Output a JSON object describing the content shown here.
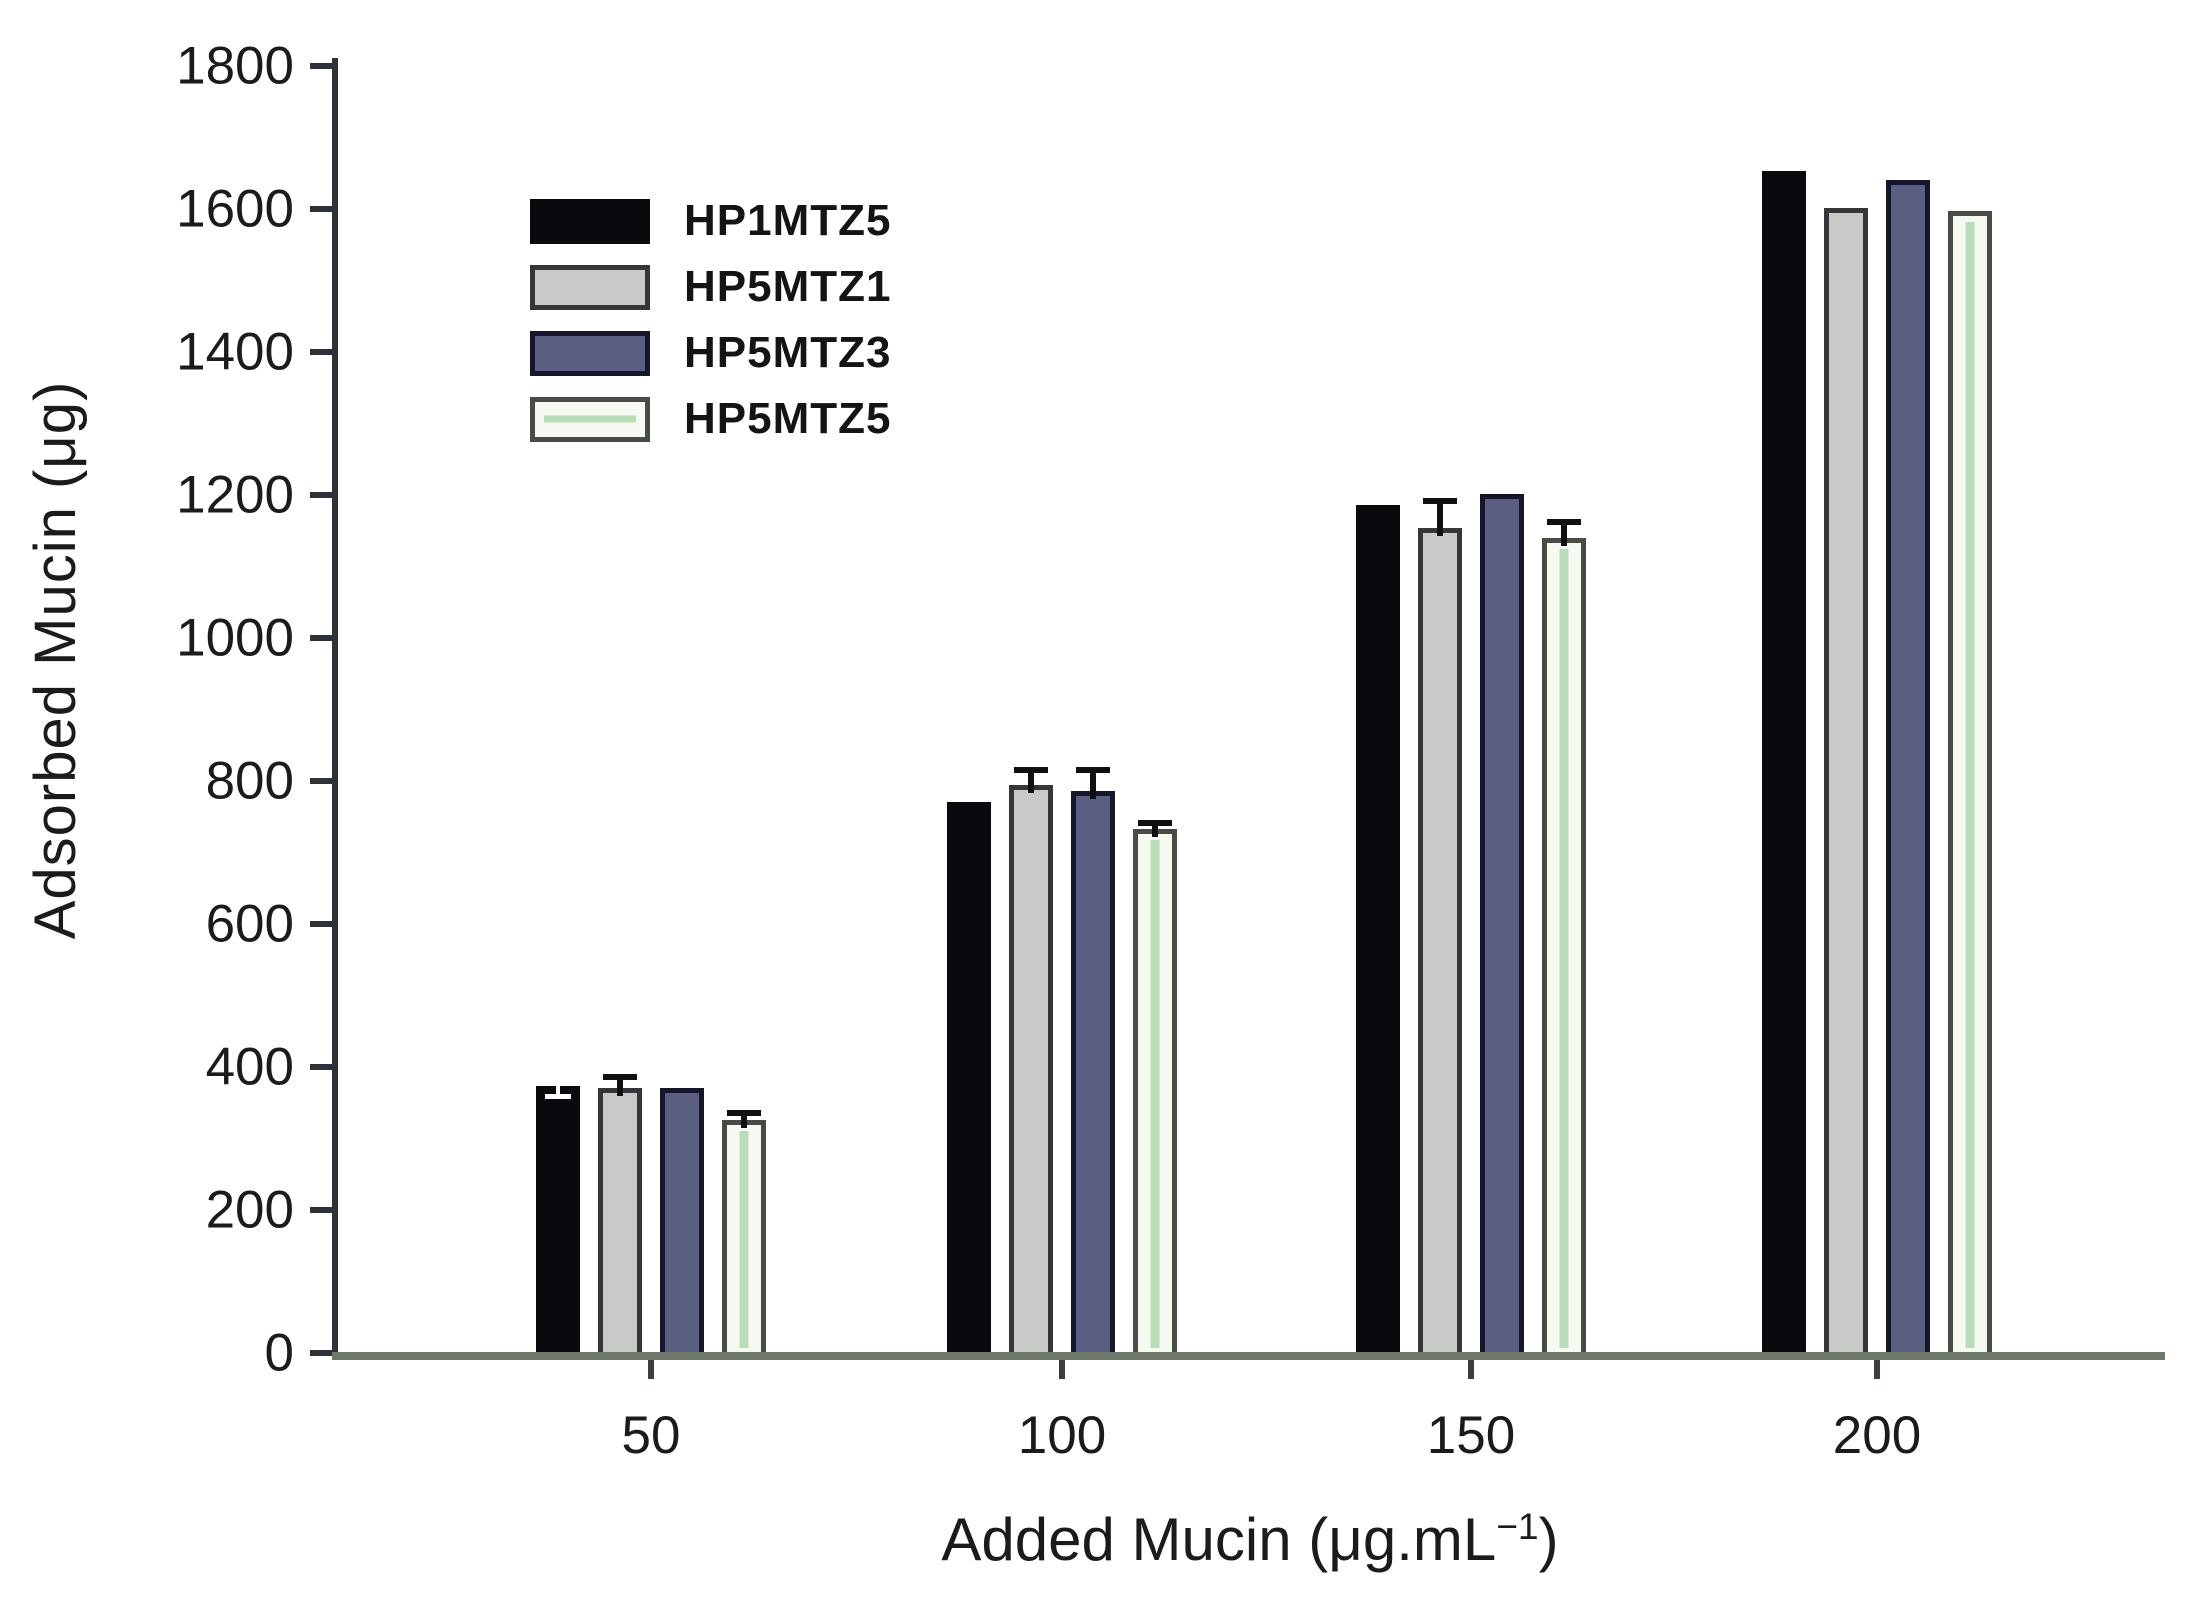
{
  "chart_data": {
    "type": "bar",
    "title": "",
    "categories": [
      "50",
      "100",
      "150",
      "200"
    ],
    "series": [
      {
        "name": "HP1MTZ5",
        "fill": "#0a0a0e",
        "border": "#0a0a0e",
        "values": [
          374,
          770,
          1186,
          1653
        ],
        "errors": [
          0,
          0,
          0,
          0
        ],
        "inner_white_tick": [
          14,
          0,
          0,
          0
        ]
      },
      {
        "name": "HP5MTZ1",
        "fill": "#c7cac7",
        "border": "#36363a",
        "values": [
          371,
          795,
          1154,
          1601
        ],
        "errors": [
          15,
          21,
          38,
          0
        ]
      },
      {
        "name": "HP5MTZ3",
        "fill": "#5a5e80",
        "border": "#15162c",
        "values": [
          370,
          786,
          1202,
          1641
        ],
        "errors": [
          0,
          29,
          0,
          0
        ]
      },
      {
        "name": "HP5MTZ5",
        "fill": "#f6f9f1",
        "border": "#474c44",
        "stripe": "#b9ddb9",
        "values": [
          326,
          733,
          1140,
          1597
        ],
        "errors": [
          10,
          8,
          22,
          0
        ]
      }
    ],
    "xlabel_prefix": "Added Mucin (μg.mL",
    "xlabel_sup": "−1",
    "xlabel_suffix": ")",
    "ylabel": "Adsorbed Mucin (μg)",
    "yticks": [
      0,
      200,
      400,
      600,
      800,
      1000,
      1200,
      1400,
      1600,
      1800
    ],
    "ylim": [
      0,
      1800
    ],
    "grid": false,
    "legend_position": "upper-left-inside",
    "error_color": "#101012",
    "colors": {
      "y_axis": "#2e3138",
      "x_axis": "#6e796c",
      "x_tick": "#3a4039",
      "text": "#1b1b1d"
    }
  }
}
